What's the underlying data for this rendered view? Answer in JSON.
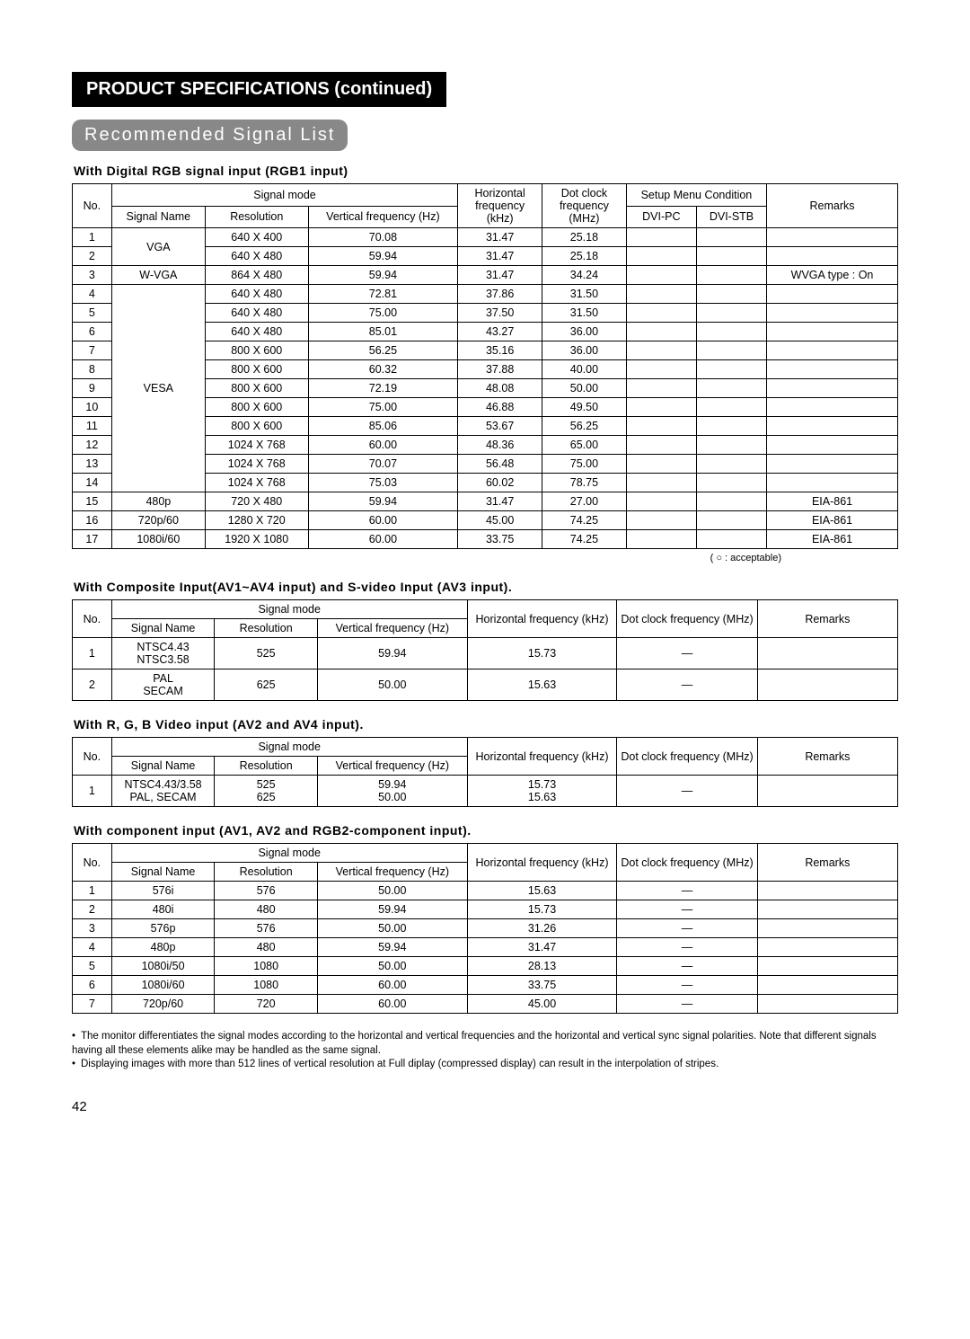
{
  "headings": {
    "main": "PRODUCT SPECIFICATIONS (continued)",
    "sub": "Recommended Signal List"
  },
  "legend": "( ○ : acceptable)",
  "notes": [
    "The monitor differentiates the signal modes according to the horizontal and vertical frequencies and the horizontal and vertical sync signal polarities.  Note that different signals having all these elements alike may be handled as the same signal.",
    "Displaying images with more than 512 lines of vertical resolution at Full diplay (compressed display) can result in the interpolation of stripes."
  ],
  "pageNumber": "42",
  "colLabels": {
    "no": "No.",
    "signalMode": "Signal mode",
    "signalName": "Signal Name",
    "resolution": "Resolution",
    "vfreq": "Vertical frequency (Hz)",
    "hfreq": "Horizontal frequency (kHz)",
    "dotclock": "Dot clock frequency (MHz)",
    "setup": "Setup Menu Condition",
    "dvipc": "DVI-PC",
    "dvistb": "DVI-STB",
    "remarks": "Remarks"
  },
  "table1": {
    "label": "With Digital RGB signal input (RGB1 input)",
    "groups": [
      {
        "name": "VGA",
        "span": 2
      },
      {
        "name": "W-VGA",
        "span": 1
      },
      {
        "name": "VESA",
        "span": 11
      },
      {
        "name": "480p",
        "span": 1
      },
      {
        "name": "720p/60",
        "span": 1
      },
      {
        "name": "1080i/60",
        "span": 1
      }
    ],
    "rows": [
      {
        "n": "1",
        "res": "640 X 400",
        "vf": "70.08",
        "hf": "31.47",
        "dc": "25.18",
        "pc": "",
        "stb": "",
        "rm": ""
      },
      {
        "n": "2",
        "res": "640 X 480",
        "vf": "59.94",
        "hf": "31.47",
        "dc": "25.18",
        "pc": "",
        "stb": "",
        "rm": ""
      },
      {
        "n": "3",
        "res": "864 X 480",
        "vf": "59.94",
        "hf": "31.47",
        "dc": "34.24",
        "pc": "",
        "stb": "",
        "rm": "WVGA type : On"
      },
      {
        "n": "4",
        "res": "640 X 480",
        "vf": "72.81",
        "hf": "37.86",
        "dc": "31.50",
        "pc": "",
        "stb": "",
        "rm": ""
      },
      {
        "n": "5",
        "res": "640 X 480",
        "vf": "75.00",
        "hf": "37.50",
        "dc": "31.50",
        "pc": "",
        "stb": "",
        "rm": ""
      },
      {
        "n": "6",
        "res": "640 X 480",
        "vf": "85.01",
        "hf": "43.27",
        "dc": "36.00",
        "pc": "",
        "stb": "",
        "rm": ""
      },
      {
        "n": "7",
        "res": "800 X 600",
        "vf": "56.25",
        "hf": "35.16",
        "dc": "36.00",
        "pc": "",
        "stb": "",
        "rm": ""
      },
      {
        "n": "8",
        "res": "800 X 600",
        "vf": "60.32",
        "hf": "37.88",
        "dc": "40.00",
        "pc": "",
        "stb": "",
        "rm": ""
      },
      {
        "n": "9",
        "res": "800 X 600",
        "vf": "72.19",
        "hf": "48.08",
        "dc": "50.00",
        "pc": "",
        "stb": "",
        "rm": ""
      },
      {
        "n": "10",
        "res": "800 X 600",
        "vf": "75.00",
        "hf": "46.88",
        "dc": "49.50",
        "pc": "",
        "stb": "",
        "rm": ""
      },
      {
        "n": "11",
        "res": "800 X 600",
        "vf": "85.06",
        "hf": "53.67",
        "dc": "56.25",
        "pc": "",
        "stb": "",
        "rm": ""
      },
      {
        "n": "12",
        "res": "1024 X 768",
        "vf": "60.00",
        "hf": "48.36",
        "dc": "65.00",
        "pc": "",
        "stb": "",
        "rm": ""
      },
      {
        "n": "13",
        "res": "1024 X 768",
        "vf": "70.07",
        "hf": "56.48",
        "dc": "75.00",
        "pc": "",
        "stb": "",
        "rm": ""
      },
      {
        "n": "14",
        "res": "1024 X 768",
        "vf": "75.03",
        "hf": "60.02",
        "dc": "78.75",
        "pc": "",
        "stb": "",
        "rm": ""
      },
      {
        "n": "15",
        "res": "720 X 480",
        "vf": "59.94",
        "hf": "31.47",
        "dc": "27.00",
        "pc": "",
        "stb": "",
        "rm": "EIA-861"
      },
      {
        "n": "16",
        "res": "1280 X 720",
        "vf": "60.00",
        "hf": "45.00",
        "dc": "74.25",
        "pc": "",
        "stb": "",
        "rm": "EIA-861"
      },
      {
        "n": "17",
        "res": "1920 X 1080",
        "vf": "60.00",
        "hf": "33.75",
        "dc": "74.25",
        "pc": "",
        "stb": "",
        "rm": "EIA-861"
      }
    ]
  },
  "table2": {
    "label": "With Composite Input(AV1~AV4 input) and S-video Input (AV3 input).",
    "rows": [
      {
        "n": "1",
        "sn": "NTSC4.43\nNTSC3.58",
        "res": "525",
        "vf": "59.94",
        "hf": "15.73",
        "dc": "—",
        "rm": ""
      },
      {
        "n": "2",
        "sn": "PAL\nSECAM",
        "res": "625",
        "vf": "50.00",
        "hf": "15.63",
        "dc": "—",
        "rm": ""
      }
    ]
  },
  "table3": {
    "label": "With R, G, B Video input (AV2 and AV4 input).",
    "rows": [
      {
        "n": "1",
        "sn": "NTSC4.43/3.58\nPAL, SECAM",
        "res": "525\n625",
        "vf": "59.94\n50.00",
        "hf": "15.73\n15.63",
        "dc": "—",
        "rm": ""
      }
    ]
  },
  "table4": {
    "label": "With component input (AV1, AV2 and RGB2-component input).",
    "rows": [
      {
        "n": "1",
        "sn": "576i",
        "res": "576",
        "vf": "50.00",
        "hf": "15.63",
        "dc": "—",
        "rm": ""
      },
      {
        "n": "2",
        "sn": "480i",
        "res": "480",
        "vf": "59.94",
        "hf": "15.73",
        "dc": "—",
        "rm": ""
      },
      {
        "n": "3",
        "sn": "576p",
        "res": "576",
        "vf": "50.00",
        "hf": "31.26",
        "dc": "—",
        "rm": ""
      },
      {
        "n": "4",
        "sn": "480p",
        "res": "480",
        "vf": "59.94",
        "hf": "31.47",
        "dc": "—",
        "rm": ""
      },
      {
        "n": "5",
        "sn": "1080i/50",
        "res": "1080",
        "vf": "50.00",
        "hf": "28.13",
        "dc": "—",
        "rm": ""
      },
      {
        "n": "6",
        "sn": "1080i/60",
        "res": "1080",
        "vf": "60.00",
        "hf": "33.75",
        "dc": "—",
        "rm": ""
      },
      {
        "n": "7",
        "sn": "720p/60",
        "res": "720",
        "vf": "60.00",
        "hf": "45.00",
        "dc": "—",
        "rm": ""
      }
    ]
  }
}
